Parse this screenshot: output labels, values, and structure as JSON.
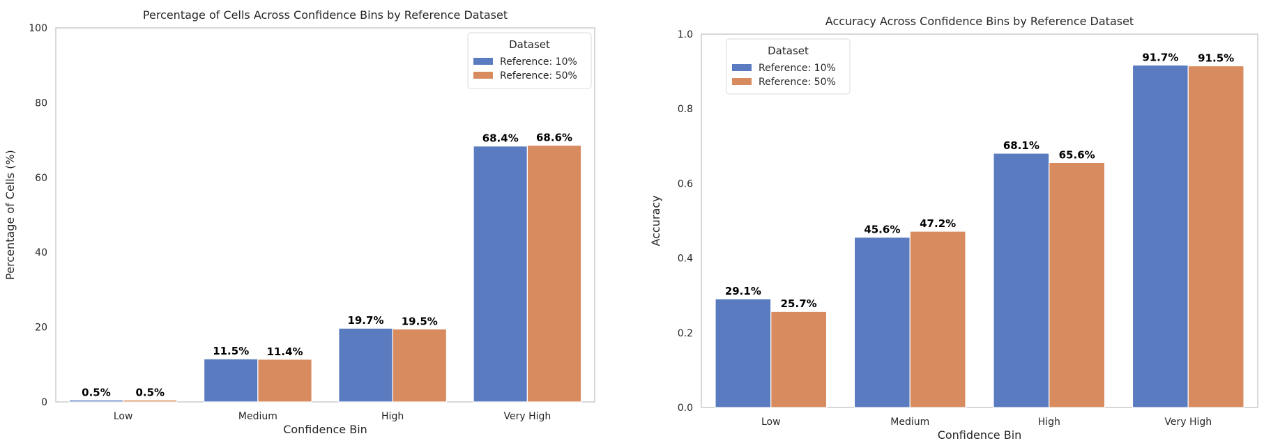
{
  "colors": {
    "series_1": "#5a7bc0",
    "series_2": "#d88b5e",
    "axis": "#cccccc",
    "text": "#262626"
  },
  "chart_data": [
    {
      "type": "bar",
      "title": "Percentage of Cells Across Confidence Bins by Reference Dataset",
      "xlabel": "Confidence Bin",
      "ylabel": "Percentage of Cells (%)",
      "categories": [
        "Low",
        "Medium",
        "High",
        "Very High"
      ],
      "ylim": [
        0,
        100
      ],
      "yticks": [
        0,
        20,
        40,
        60,
        80,
        100
      ],
      "ytick_labels": [
        "0",
        "20",
        "40",
        "60",
        "80",
        "100"
      ],
      "grid": false,
      "legend": {
        "title": "Dataset",
        "placement": "top-right"
      },
      "series": [
        {
          "name": "Reference: 10%",
          "values": [
            0.5,
            11.5,
            19.7,
            68.4
          ],
          "labels": [
            "0.5%",
            "11.5%",
            "19.7%",
            "68.4%"
          ]
        },
        {
          "name": "Reference: 50%",
          "values": [
            0.5,
            11.4,
            19.5,
            68.6
          ],
          "labels": [
            "0.5%",
            "11.4%",
            "19.5%",
            "68.6%"
          ]
        }
      ]
    },
    {
      "type": "bar",
      "title": "Accuracy Across Confidence Bins by Reference Dataset",
      "xlabel": "Confidence Bin",
      "ylabel": "Accuracy",
      "categories": [
        "Low",
        "Medium",
        "High",
        "Very High"
      ],
      "ylim": [
        0,
        1.0
      ],
      "yticks": [
        0,
        0.2,
        0.4,
        0.6,
        0.8,
        1.0
      ],
      "ytick_labels": [
        "0.0",
        "0.2",
        "0.4",
        "0.6",
        "0.8",
        "1.0"
      ],
      "grid": false,
      "legend": {
        "title": "Dataset",
        "placement": "top-left"
      },
      "series": [
        {
          "name": "Reference: 10%",
          "values": [
            0.291,
            0.456,
            0.681,
            0.917
          ],
          "labels": [
            "29.1%",
            "45.6%",
            "68.1%",
            "91.7%"
          ]
        },
        {
          "name": "Reference: 50%",
          "values": [
            0.257,
            0.472,
            0.656,
            0.915
          ],
          "labels": [
            "25.7%",
            "47.2%",
            "65.6%",
            "91.5%"
          ]
        }
      ]
    }
  ]
}
